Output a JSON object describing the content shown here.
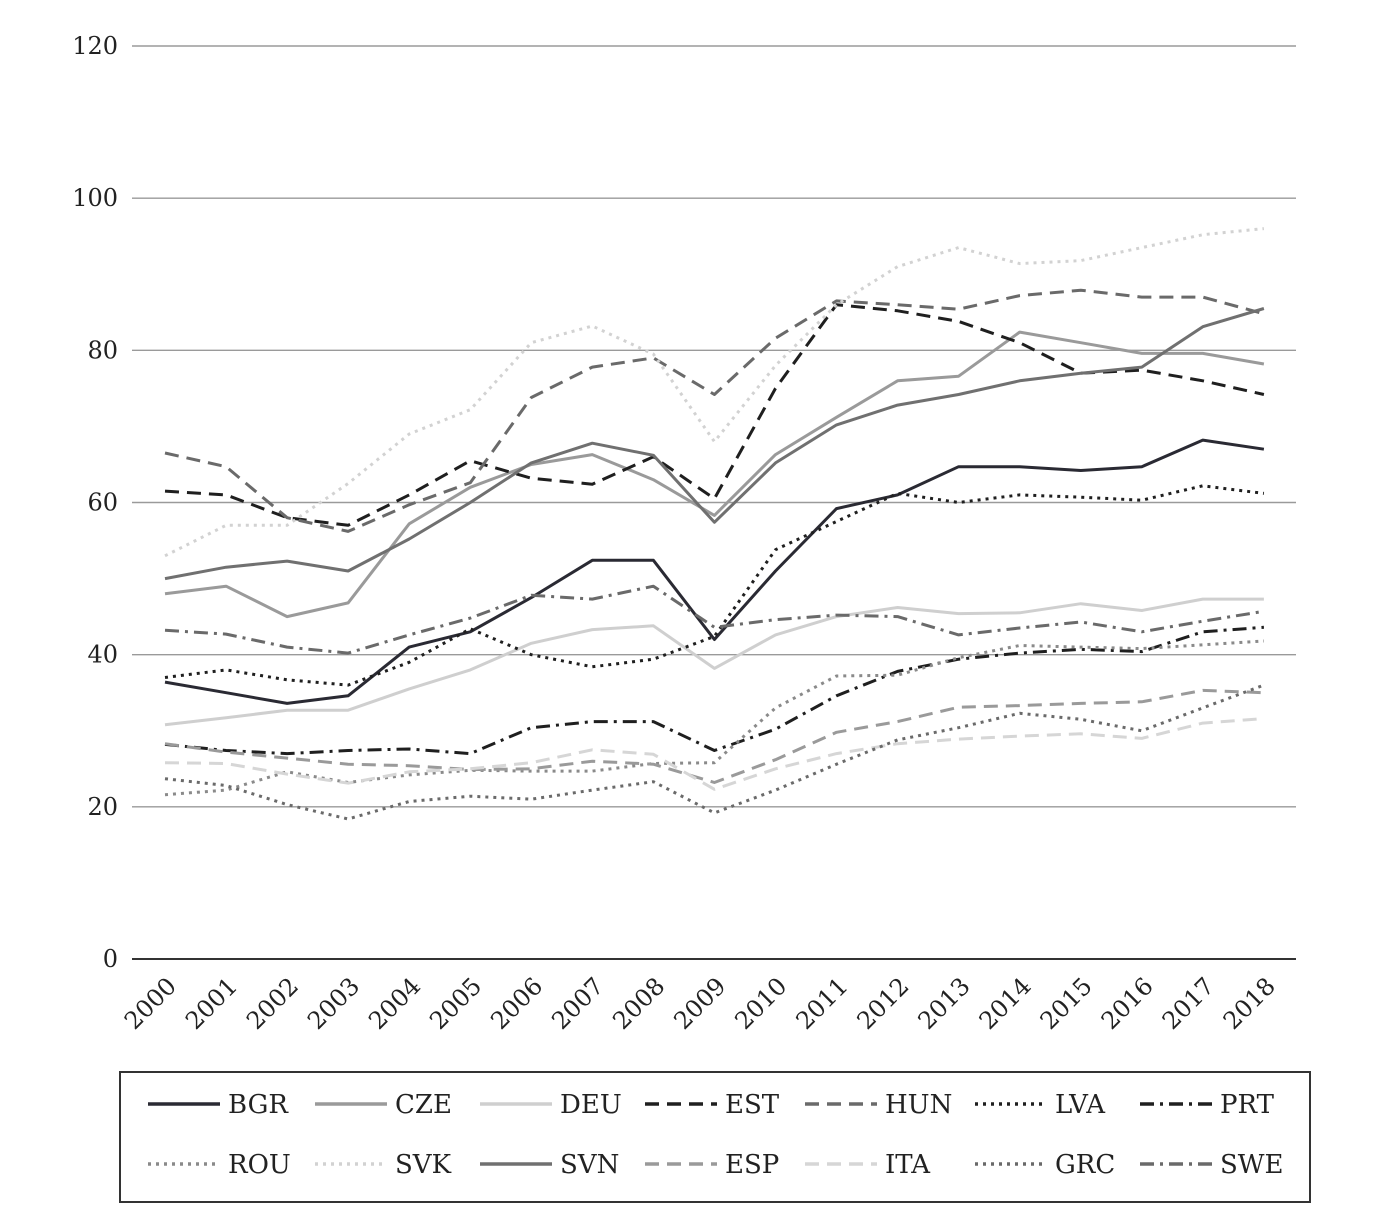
{
  "chart_data": {
    "type": "line",
    "title": "",
    "xlabel": "",
    "ylabel": "",
    "ylim": [
      0,
      120
    ],
    "yticks": [
      0,
      20,
      40,
      60,
      80,
      100,
      120
    ],
    "grid": "horizontal",
    "legend_position": "bottom",
    "x": [
      "2000",
      "2001",
      "2002",
      "2003",
      "2004",
      "2005",
      "2006",
      "2007",
      "2008",
      "2009",
      "2010",
      "2011",
      "2012",
      "2013",
      "2014",
      "2015",
      "2016",
      "2017",
      "2018"
    ],
    "series": [
      {
        "name": "BGR",
        "color": "#2a2a33",
        "dash": "solid",
        "values": [
          36.4,
          35.0,
          33.6,
          34.6,
          41.0,
          43.0,
          47.5,
          52.4,
          52.4,
          42.0,
          51.0,
          59.2,
          61.0,
          64.7,
          64.7,
          64.2,
          64.7,
          68.2,
          67.0
        ]
      },
      {
        "name": "CZE",
        "color": "#9a9a9a",
        "dash": "solid",
        "values": [
          48.0,
          49.0,
          45.0,
          46.8,
          57.2,
          62.0,
          65.0,
          66.3,
          63.0,
          58.3,
          66.3,
          71.2,
          76.0,
          76.6,
          82.4,
          81.0,
          79.6,
          79.6,
          78.2
        ]
      },
      {
        "name": "DEU",
        "color": "#cfcfcf",
        "dash": "solid",
        "values": [
          30.8,
          31.7,
          32.7,
          32.7,
          35.5,
          38.0,
          41.5,
          43.3,
          43.8,
          38.2,
          42.6,
          45.0,
          46.2,
          45.4,
          45.5,
          46.7,
          45.8,
          47.3,
          47.3
        ]
      },
      {
        "name": "EST",
        "color": "#1f1f1f",
        "dash": "long",
        "values": [
          61.5,
          61.0,
          58.0,
          57.0,
          61.0,
          65.5,
          63.2,
          62.4,
          66.0,
          60.5,
          75.0,
          86.0,
          85.2,
          83.8,
          81.0,
          77.0,
          77.4,
          76.0,
          74.2
        ]
      },
      {
        "name": "HUN",
        "color": "#6a6a6a",
        "dash": "long",
        "values": [
          66.5,
          64.7,
          58.0,
          56.2,
          59.7,
          62.6,
          73.8,
          77.8,
          79.0,
          74.2,
          81.6,
          86.5,
          86.0,
          85.4,
          87.2,
          87.9,
          87.0,
          87.0,
          84.8
        ]
      },
      {
        "name": "LVA",
        "color": "#1f1f1f",
        "dash": "dot",
        "values": [
          37.0,
          38.0,
          36.7,
          36.0,
          39.0,
          43.4,
          40.0,
          38.4,
          39.4,
          42.4,
          53.8,
          57.5,
          61.2,
          60.0,
          61.0,
          60.7,
          60.3,
          62.2,
          61.2
        ]
      },
      {
        "name": "PRT",
        "color": "#1f1f1f",
        "dash": "dashdot",
        "values": [
          28.2,
          27.4,
          27.0,
          27.4,
          27.6,
          27.0,
          30.4,
          31.2,
          31.2,
          27.4,
          30.2,
          34.6,
          37.8,
          39.4,
          40.2,
          40.7,
          40.4,
          43.0,
          43.6
        ]
      },
      {
        "name": "ROU",
        "color": "#8a8a8a",
        "dash": "dot",
        "values": [
          21.6,
          22.2,
          24.6,
          23.2,
          24.2,
          24.8,
          24.7,
          24.7,
          25.7,
          25.8,
          33.0,
          37.2,
          37.3,
          39.6,
          41.2,
          41.0,
          40.8,
          41.3,
          41.8
        ]
      },
      {
        "name": "SVK",
        "color": "#d2d2d2",
        "dash": "dot",
        "values": [
          53.0,
          57.0,
          57.0,
          62.5,
          69.0,
          72.2,
          81.0,
          83.2,
          79.5,
          68.0,
          78.0,
          86.0,
          91.0,
          93.5,
          91.4,
          91.8,
          93.5,
          95.2,
          96.0
        ]
      },
      {
        "name": "SVN",
        "color": "#707070",
        "dash": "solid",
        "values": [
          50.0,
          51.5,
          52.3,
          51.0,
          55.2,
          60.0,
          65.2,
          67.8,
          66.2,
          57.4,
          65.2,
          70.2,
          72.8,
          74.2,
          76.0,
          77.0,
          77.8,
          83.1,
          85.5
        ]
      },
      {
        "name": "ESP",
        "color": "#9a9a9a",
        "dash": "long",
        "values": [
          28.3,
          27.2,
          26.4,
          25.6,
          25.4,
          24.9,
          25.0,
          26.0,
          25.6,
          23.2,
          26.2,
          29.8,
          31.2,
          33.1,
          33.3,
          33.6,
          33.8,
          35.3,
          35.0
        ]
      },
      {
        "name": "ITA",
        "color": "#d6d6d6",
        "dash": "long",
        "values": [
          25.8,
          25.7,
          24.3,
          23.1,
          24.6,
          25.0,
          25.8,
          27.5,
          26.9,
          22.3,
          25.0,
          27.0,
          28.3,
          28.9,
          29.3,
          29.6,
          29.0,
          31.0,
          31.6
        ]
      },
      {
        "name": "GRC",
        "color": "#6a6a6a",
        "dash": "dot",
        "values": [
          23.7,
          22.8,
          20.3,
          18.4,
          20.7,
          21.4,
          21.0,
          22.2,
          23.3,
          19.2,
          22.2,
          25.6,
          28.8,
          30.4,
          32.3,
          31.5,
          30.0,
          33.0,
          36.0
        ]
      },
      {
        "name": "SWE",
        "color": "#6a6a6a",
        "dash": "dashdot",
        "values": [
          43.2,
          42.7,
          41.0,
          40.2,
          42.6,
          44.8,
          47.8,
          47.3,
          49.0,
          43.6,
          44.6,
          45.2,
          45.0,
          42.6,
          43.5,
          44.3,
          43.0,
          44.4,
          45.7
        ]
      }
    ]
  }
}
